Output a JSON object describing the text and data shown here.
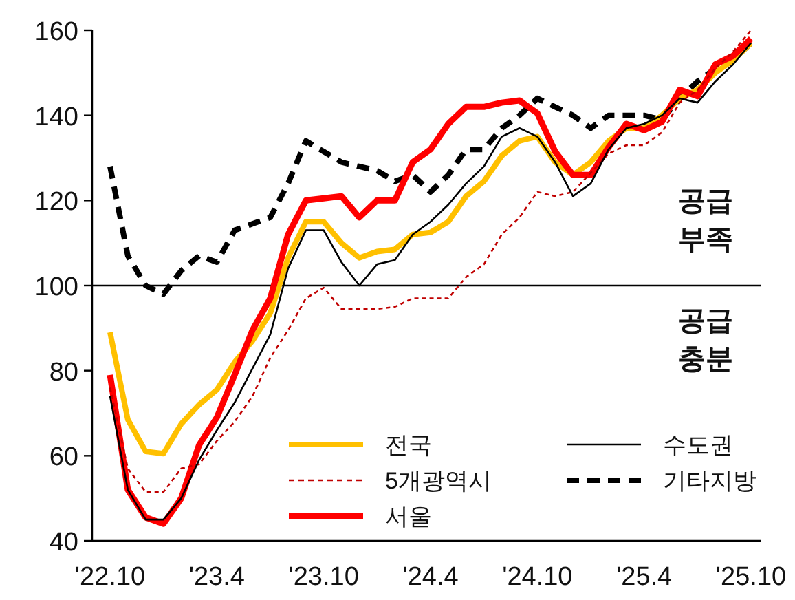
{
  "chart_data": {
    "type": "line",
    "categories": [
      "'22.10",
      null,
      null,
      null,
      null,
      null,
      "'23.4",
      null,
      null,
      null,
      null,
      null,
      "'23.10",
      null,
      null,
      null,
      null,
      null,
      "'24.4",
      null,
      null,
      null,
      null,
      null,
      "'24.10",
      null,
      null,
      null,
      null,
      null,
      "'25.4",
      null,
      null,
      null,
      null,
      null,
      "'25.10"
    ],
    "series": [
      {
        "name": "전국",
        "color": "#ffc000",
        "line_style": "solid",
        "values": [
          89,
          68.5,
          61,
          60.5,
          67.5,
          72,
          75.5,
          82,
          87,
          93.5,
          106.5,
          115,
          115,
          110,
          106.5,
          108,
          108.5,
          112,
          112.5,
          115,
          121,
          124.5,
          130.5,
          134,
          135,
          129,
          126,
          129,
          134,
          137,
          137,
          140,
          144,
          146,
          150,
          153,
          157
        ]
      },
      {
        "name": "수도권",
        "color": "#000000",
        "line_style": "solid",
        "values": [
          74,
          52,
          45,
          45,
          50,
          59,
          66,
          72.5,
          80.5,
          88.5,
          104,
          113,
          113,
          105.5,
          100,
          105,
          106,
          112,
          115,
          119,
          124,
          128,
          135,
          137,
          135,
          129,
          121,
          124,
          132,
          137,
          138,
          140,
          144,
          143,
          148,
          152,
          157
        ]
      },
      {
        "name": "5개광역시",
        "color": "#c00000",
        "line_style": "dashed",
        "values": [
          76,
          57,
          51.5,
          51.5,
          57,
          58,
          63.5,
          68,
          74,
          83,
          89.5,
          97,
          99.5,
          94.5,
          94.5,
          94.5,
          95,
          97,
          97,
          97,
          102,
          105,
          112,
          116,
          122,
          121,
          122,
          126.5,
          131,
          133,
          133,
          136,
          143,
          146,
          151,
          155,
          160
        ]
      },
      {
        "name": "기타지방",
        "color": "#000000",
        "line_style": "dashed",
        "values": [
          128,
          107,
          100,
          98,
          103.5,
          107,
          105.5,
          113,
          114.5,
          116,
          124,
          134,
          131.5,
          129,
          128,
          127,
          124.5,
          126,
          122,
          126,
          132,
          132,
          137,
          140,
          144,
          142,
          140,
          137,
          140,
          140,
          140,
          139,
          144,
          148,
          151,
          153,
          157
        ]
      },
      {
        "name": "서울",
        "color": "#ff0000",
        "line_style": "solid",
        "values": [
          79,
          52,
          45.5,
          44,
          50,
          62.5,
          69,
          79,
          89.5,
          97,
          112,
          120,
          120.5,
          121,
          116,
          120,
          120,
          129,
          132,
          138,
          142,
          142,
          143,
          143.5,
          140.5,
          131.5,
          126,
          126,
          132.5,
          138,
          136.5,
          138.5,
          146,
          144.5,
          152,
          154,
          158
        ]
      }
    ],
    "ylim": [
      40,
      160
    ],
    "yticks": [
      40,
      60,
      80,
      100,
      120,
      140,
      160
    ],
    "ref_lines": [
      {
        "axis": "y",
        "value": 100,
        "color": "#000000",
        "line_style": "solid"
      }
    ],
    "annotations": [
      "공급 부족",
      "공급 충분"
    ],
    "legend": "bottom right",
    "grid": false,
    "marker": "none"
  }
}
